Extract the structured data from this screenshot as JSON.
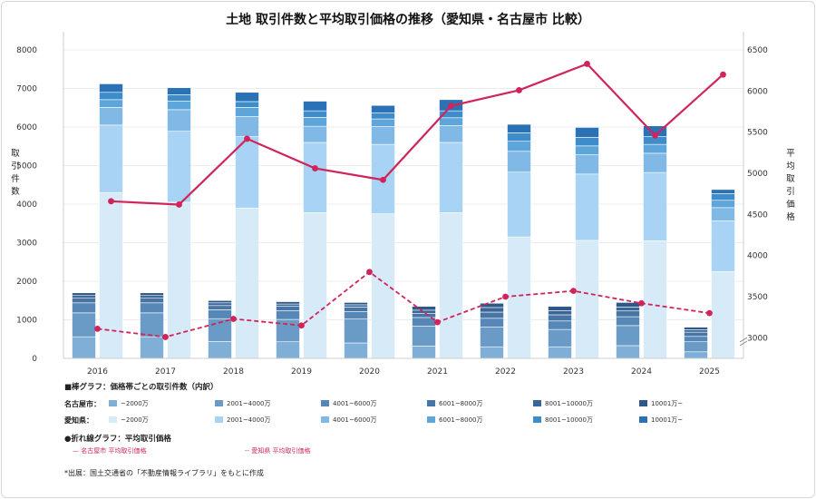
{
  "chart_data": {
    "type": "bar",
    "title": "土地 取引件数と平均取引価格の推移（愛知県・名古屋市 比較）",
    "ylabel_left": "取引件数",
    "ylabel_right": "平均取引価格",
    "ylim_left": [
      0,
      8000
    ],
    "yticks_left": [
      "0",
      "1000",
      "2000",
      "3000",
      "4000",
      "5000",
      "6000",
      "7000",
      "8000"
    ],
    "ylim_right": [
      2750,
      6500
    ],
    "yticks_right": [
      "3000",
      "3500",
      "4000",
      "4500",
      "5000",
      "5500",
      "6000",
      "6500"
    ],
    "right_axis_break": true,
    "grid": true,
    "categories": [
      "2016",
      "2017",
      "2018",
      "2019",
      "2020",
      "2021",
      "2022",
      "2023",
      "2024",
      "2025"
    ],
    "price_bands": [
      "~2000万",
      "2001~4000万",
      "4001~6000万",
      "6001~8000万",
      "8001~10000万",
      "10001万~"
    ],
    "bar_groups": [
      {
        "name": "名古屋市",
        "colors": [
          "#7fafd6",
          "#6a9ac6",
          "#5787b6",
          "#4776a6",
          "#3a6695",
          "#2f5889"
        ],
        "series": [
          {
            "name": "~2000万",
            "values": [
              560,
              560,
              440,
              430,
              400,
              320,
              300,
              300,
              330,
              170
            ]
          },
          {
            "name": "2001~4000万",
            "values": [
              620,
              620,
              590,
              580,
              620,
              520,
              510,
              450,
              520,
              260
            ]
          },
          {
            "name": "4001~6000万",
            "values": [
              260,
              260,
              230,
              230,
              190,
              220,
              230,
              220,
              230,
              140
            ]
          },
          {
            "name": "6001~8000万",
            "values": [
              120,
              120,
              110,
              110,
              120,
              110,
              160,
              160,
              150,
              110
            ]
          },
          {
            "name": "8001~10000万",
            "values": [
              70,
              70,
              70,
              60,
              60,
              80,
              120,
              110,
              100,
              60
            ]
          },
          {
            "name": "10001万~",
            "values": [
              70,
              70,
              60,
              60,
              60,
              100,
              110,
              110,
              120,
              70
            ]
          }
        ]
      },
      {
        "name": "愛知県",
        "colors": [
          "#d6eaf8",
          "#a9d3f4",
          "#80b9e6",
          "#5ea5da",
          "#3f8ccb",
          "#2a71b6"
        ],
        "series": [
          {
            "name": "~2000万",
            "values": [
              4300,
              4050,
              3900,
              3780,
              3750,
              3780,
              3150,
              3060,
              3050,
              2250
            ]
          },
          {
            "name": "2001~4000万",
            "values": [
              1750,
              1840,
              1850,
              1820,
              1800,
              1820,
              1680,
              1720,
              1770,
              1320
            ]
          },
          {
            "name": "4001~6000万",
            "values": [
              460,
              560,
              520,
              420,
              460,
              440,
              540,
              500,
              500,
              340
            ]
          },
          {
            "name": "6001~8000万",
            "values": [
              200,
              220,
              240,
              230,
              200,
              200,
              260,
              230,
              230,
              190
            ]
          },
          {
            "name": "8001~10000万",
            "values": [
              190,
              170,
              150,
              170,
              160,
              180,
              220,
              220,
              200,
              170
            ]
          },
          {
            "name": "10001万~",
            "values": [
              220,
              180,
              240,
              250,
              190,
              290,
              220,
              260,
              280,
              110
            ]
          }
        ]
      }
    ],
    "lines": [
      {
        "name": "名古屋市 平均取引価格",
        "style": "solid",
        "color": "#d0245a",
        "values": [
          4660,
          4620,
          5420,
          5060,
          4920,
          5820,
          6010,
          6330,
          5460,
          6200
        ]
      },
      {
        "name": "愛知県 平均取引価格",
        "style": "dashed",
        "color": "#d0245a",
        "values": [
          3110,
          3010,
          3230,
          3150,
          3800,
          3190,
          3500,
          3570,
          3420,
          3300
        ]
      }
    ]
  },
  "legend": {
    "bar_heading": "■棒グラフ：価格帯ごとの取引件数（内訳）",
    "row_nagoya": "名古屋市：",
    "row_aichi": "愛知県：",
    "line_heading": "●折れ線グラフ：平均取引価格",
    "line_nagoya": "— 名古屋市 平均取引価格",
    "line_aichi": "-- 愛知県 平均取引価格"
  },
  "source": "*出展：国土交通省の「不動産情報ライブラリ」をもとに作成"
}
